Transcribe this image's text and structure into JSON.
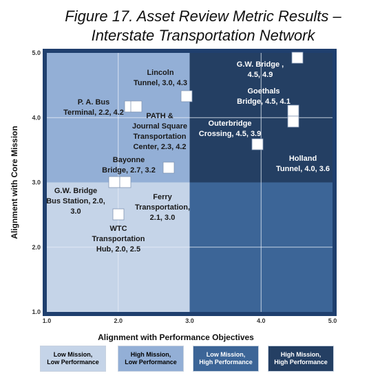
{
  "title_line1": "Figure 17. Asset Review Metric Results –",
  "title_line2": "Interstate Transportation Network",
  "colors": {
    "q_low_low": "#c5d4e8",
    "q_high_low": "#93afd6",
    "q_low_high": "#3c6597",
    "q_high_high": "#243f63",
    "frame": "#1f3f6e",
    "marker_fill": "#ffffff"
  },
  "chart_data": {
    "type": "scatter",
    "xlabel": "Alignment with Performance Objectives",
    "ylabel": "Alignment with Core Mission",
    "xlim": [
      1.0,
      5.0
    ],
    "ylim": [
      1.0,
      5.0
    ],
    "xticks": [
      "1.0",
      "2.0",
      "3.0",
      "4.0",
      "5.0"
    ],
    "yticks": [
      "1.0",
      "2.0",
      "3.0",
      "4.0",
      "5.0"
    ],
    "grid": true,
    "points": [
      {
        "label": [
          "G.W. Bridge ,",
          "4.5, 4.9"
        ],
        "x": 4.5,
        "y": 4.9,
        "light": true
      },
      {
        "label": [
          "Lincoln",
          "Tunnel, 3.0, 4.3"
        ],
        "x": 3.0,
        "y": 4.3,
        "light": false
      },
      {
        "label": [
          "Goethals",
          "Bridge, 4.5, 4.1"
        ],
        "x": 4.5,
        "y": 4.1,
        "light": true
      },
      {
        "label": [
          "P. A. Bus",
          "Terminal, 2.2, 4.2"
        ],
        "x": 2.2,
        "y": 4.2,
        "light": false
      },
      {
        "label": [
          "PATH &",
          "Journal Square",
          "Transportation",
          "Center, 2.3, 4.2"
        ],
        "x": 2.3,
        "y": 4.2,
        "light": false
      },
      {
        "label": [
          "Outerbridge",
          "Crossing, 4.5, 3.9"
        ],
        "x": 4.5,
        "y": 3.9,
        "light": true
      },
      {
        "label": [
          "Holland",
          "Tunnel, 4.0, 3.6"
        ],
        "x": 4.0,
        "y": 3.6,
        "light": true
      },
      {
        "label": [
          "Bayonne",
          "Bridge, 2.7, 3.2"
        ],
        "x": 2.7,
        "y": 3.2,
        "light": false
      },
      {
        "label": [
          "G.W. Bridge",
          "Bus Station, 2.0,",
          "3.0"
        ],
        "x": 2.0,
        "y": 3.0,
        "light": false
      },
      {
        "label": [
          "Ferry",
          "Transportation,",
          "2.1, 3.0"
        ],
        "x": 2.1,
        "y": 3.0,
        "light": false
      },
      {
        "label": [
          "WTC",
          "Transportation",
          "Hub, 2.0, 2.5"
        ],
        "x": 2.0,
        "y": 2.5,
        "light": false
      }
    ]
  },
  "legend": [
    {
      "line1": "Low Mission,",
      "line2": "Low Performance"
    },
    {
      "line1": "High Mission,",
      "line2": "Low Performance"
    },
    {
      "line1": "Low Mission,",
      "line2": "High Performance"
    },
    {
      "line1": "High Mission,",
      "line2": "High Performance"
    }
  ]
}
